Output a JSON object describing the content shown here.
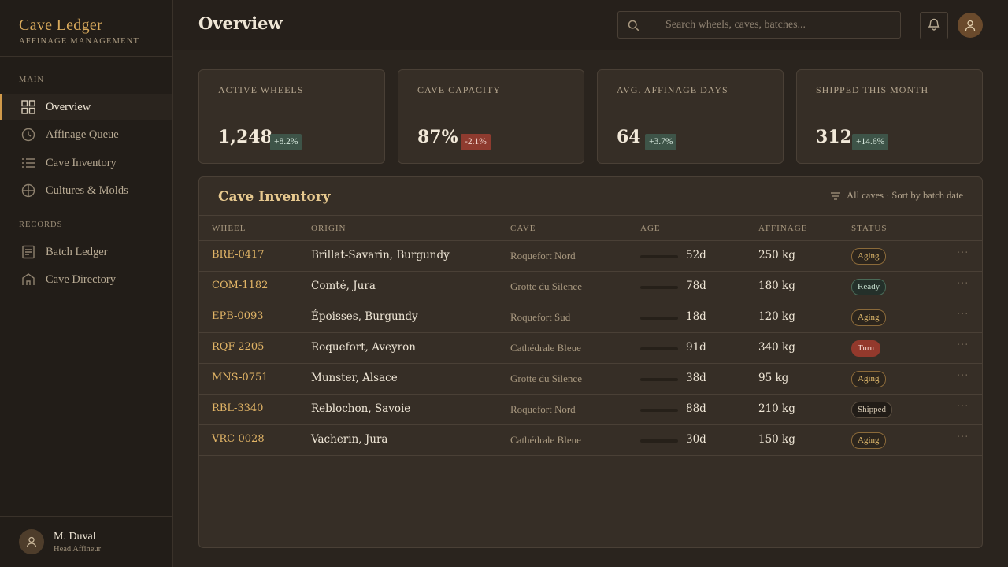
{
  "brand": {
    "title": "Cave Ledger",
    "subtitle": "AFFINAGE MANAGEMENT"
  },
  "sidebar": {
    "sections": [
      {
        "label": "MAIN"
      },
      {
        "label": "RECORDS"
      }
    ],
    "items": [
      {
        "label": "Overview",
        "icon": "grid-icon",
        "active": true
      },
      {
        "label": "Affinage Queue",
        "icon": "clock-icon"
      },
      {
        "label": "Cave Inventory",
        "icon": "list-icon"
      },
      {
        "label": "Cultures & Molds",
        "icon": "globe-icon"
      },
      {
        "label": "Batch Ledger",
        "icon": "document-icon"
      },
      {
        "label": "Cave Directory",
        "icon": "home-icon"
      }
    ],
    "user": {
      "name": "M. Duval",
      "role": "Head Affineur"
    }
  },
  "header": {
    "title": "Overview",
    "search_placeholder": "Search wheels, caves, batches..."
  },
  "stats": [
    {
      "label": "ACTIVE WHEELS",
      "value": "1,248",
      "delta": "+8.2%",
      "trend": "up"
    },
    {
      "label": "CAVE CAPACITY",
      "value": "87%",
      "delta": "-2.1%",
      "trend": "down"
    },
    {
      "label": "AVG. AFFINAGE DAYS",
      "value": "64",
      "delta": "+3.7%",
      "trend": "up"
    },
    {
      "label": "SHIPPED THIS MONTH",
      "value": "312",
      "delta": "+14.6%",
      "trend": "up"
    }
  ],
  "inventory": {
    "title": "Cave Inventory",
    "filter_label": "All caves · Sort by batch date",
    "columns": [
      "WHEEL",
      "ORIGIN",
      "CAVE",
      "AGE",
      "AFFINAGE",
      "STATUS"
    ],
    "rows": [
      {
        "wheel": "BRE-0417",
        "origin": "Brillat-Savarin, Burgundy",
        "cave": "Roquefort Nord",
        "age": "52d",
        "affinage": "250 kg",
        "status": "Aging"
      },
      {
        "wheel": "COM-1182",
        "origin": "Comté, Jura",
        "cave": "Grotte du Silence",
        "age": "78d",
        "affinage": "180 kg",
        "status": "Ready"
      },
      {
        "wheel": "EPB-0093",
        "origin": "Époisses, Burgundy",
        "cave": "Roquefort Sud",
        "age": "18d",
        "affinage": "120 kg",
        "status": "Aging"
      },
      {
        "wheel": "RQF-2205",
        "origin": "Roquefort, Aveyron",
        "cave": "Cathédrale Bleue",
        "age": "91d",
        "affinage": "340 kg",
        "status": "Turn"
      },
      {
        "wheel": "MNS-0751",
        "origin": "Munster, Alsace",
        "cave": "Grotte du Silence",
        "age": "38d",
        "affinage": "95 kg",
        "status": "Aging"
      },
      {
        "wheel": "RBL-3340",
        "origin": "Reblochon, Savoie",
        "cave": "Roquefort Nord",
        "age": "88d",
        "affinage": "210 kg",
        "status": "Shipped"
      },
      {
        "wheel": "VRC-0028",
        "origin": "Vacherin, Jura",
        "cave": "Cathédrale Bleue",
        "age": "30d",
        "affinage": "150 kg",
        "status": "Aging"
      }
    ],
    "row_action_icon": "more-icon"
  },
  "colors": {
    "accent": "#d19a4a",
    "wheel_id": "#e1b466",
    "up": "#3e5448",
    "down": "#8e3b2f"
  }
}
